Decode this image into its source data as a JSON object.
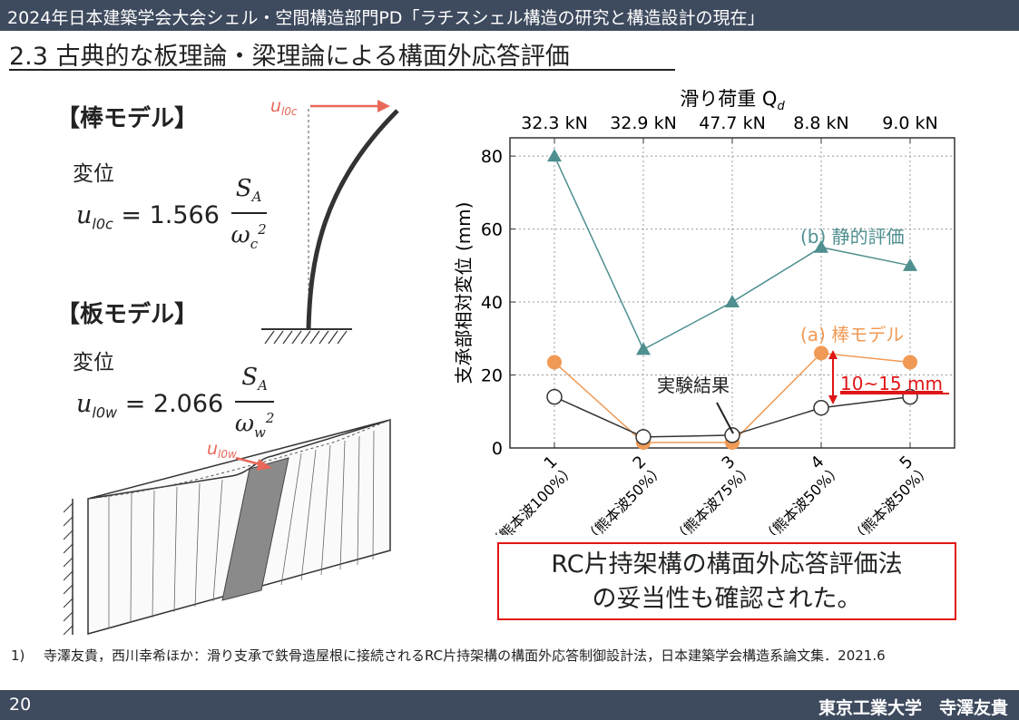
{
  "header": {
    "text": "2024年日本建築学会大会シェル・空間構造部門PD「ラチスシェル構造の研究と構造設計の現在」"
  },
  "slide_title": "2.3 古典的な板理論・梁理論による構面外応答評価",
  "rod_model": {
    "heading": "【棒モデル】",
    "label": "変位",
    "lhs": "u",
    "lhs_sub": "l0c",
    "eq": "= 1.566",
    "numerator": "S",
    "numerator_sub": "A",
    "denominator": "ω",
    "denominator_sub": "c",
    "denominator_sup": "2",
    "arrow_label": "u",
    "arrow_label_sub": "l0c"
  },
  "plate_model": {
    "heading": "【板モデル】",
    "label": "変位",
    "lhs": "u",
    "lhs_sub": "l0w",
    "eq": "= 2.066",
    "numerator": "S",
    "numerator_sub": "A",
    "denominator": "ω",
    "denominator_sub": "w",
    "denominator_sup": "2",
    "arrow_label": "u",
    "arrow_label_sub": "l0w"
  },
  "chart_data": {
    "type": "line",
    "top_axis_title": "滑り荷重 Q",
    "top_axis_title_sub": "d",
    "top_labels": [
      "32.3 kN",
      "32.9 kN",
      "47.7 kN",
      "8.8 kN",
      "9.0 kN"
    ],
    "categories": [
      "1",
      "2",
      "3",
      "4",
      "5"
    ],
    "category_sublabels": [
      "（熊本波100%）",
      "（熊本波50%）",
      "（熊本波75%）",
      "（熊本波50%）",
      "（熊本波50%）"
    ],
    "ylabel": "支承部相対変位 (mm)",
    "ylim": [
      0,
      85
    ],
    "yticks": [
      0,
      20,
      40,
      60,
      80
    ],
    "grid": true,
    "series": [
      {
        "name": "(b) 静的評価",
        "values": [
          80,
          27,
          40,
          55,
          50
        ],
        "color": "#4f8f8f",
        "marker": "triangle"
      },
      {
        "name": "(a) 棒モデル",
        "values": [
          23.5,
          1.5,
          1.5,
          26,
          23.5
        ],
        "color": "#f09a55",
        "marker": "circle-filled"
      },
      {
        "name": "実験結果",
        "values": [
          14,
          3,
          3.5,
          11,
          14
        ],
        "color": "#333333",
        "marker": "circle-open"
      }
    ],
    "annotation": "10~15 mm"
  },
  "conclusion": {
    "line1": "RC片持架構の構面外応答評価法",
    "line2": "の妥当性も確認された。"
  },
  "reference": {
    "num": "1)",
    "text": "寺澤友貴，西川幸希ほか：滑り支承で鉄骨造屋根に接続されるRC片持架構の構面外応答制御設計法，日本建築学会構造系論文集．2021.6"
  },
  "footer": {
    "page": "20",
    "author": "東京工業大学　寺澤友貴"
  },
  "colors": {
    "bar": "#3e4a5e",
    "accent_red": "#e01515",
    "arrow": "#e8685a"
  }
}
